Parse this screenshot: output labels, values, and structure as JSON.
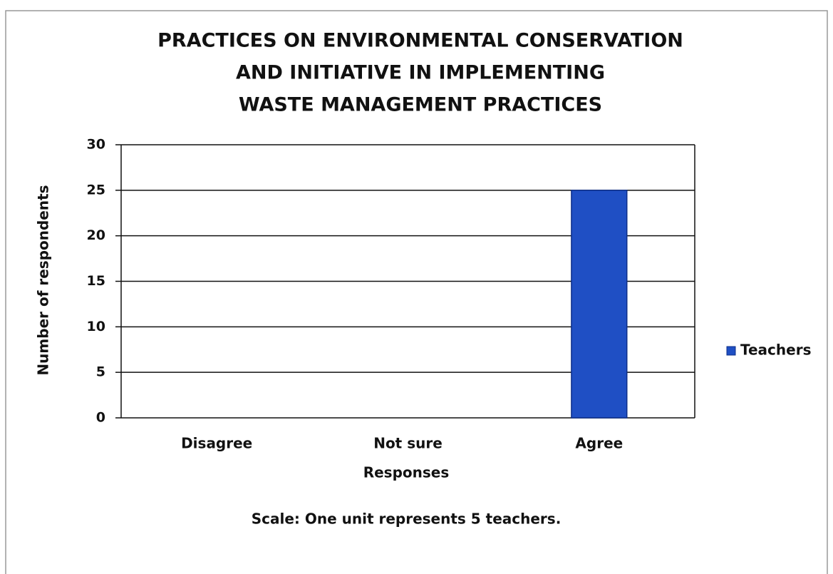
{
  "chart_data": {
    "type": "bar",
    "title": [
      "PRACTICES ON ENVIRONMENTAL CONSERVATION",
      "AND INITIATIVE IN IMPLEMENTING",
      "WASTE MANAGEMENT PRACTICES"
    ],
    "categories": [
      "Disagree",
      "Not sure",
      "Agree"
    ],
    "series": [
      {
        "name": "Teachers",
        "color": "#1f4fc4",
        "values": [
          0,
          0,
          25
        ]
      }
    ],
    "ylim": [
      0,
      30
    ],
    "yticks": [
      0,
      5,
      10,
      15,
      20,
      25,
      30
    ],
    "grid": true,
    "xlabel": "Responses",
    "ylabel": "Number of respondents",
    "annotation": "Scale: One unit represents 5 teachers.",
    "legend": "right"
  }
}
